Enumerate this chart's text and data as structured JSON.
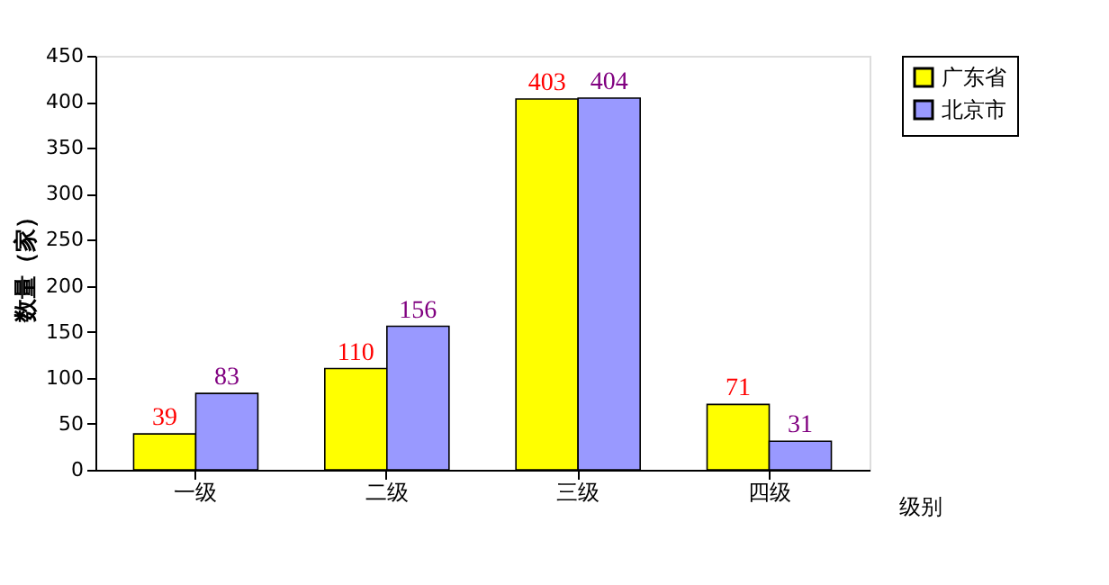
{
  "chart_data": {
    "type": "bar",
    "categories": [
      "一级",
      "二级",
      "三级",
      "四级"
    ],
    "series": [
      {
        "name": "广东省",
        "color": "#ffff00",
        "values": [
          39,
          110,
          403,
          71
        ]
      },
      {
        "name": "北京市",
        "color": "#9999ff",
        "values": [
          83,
          156,
          404,
          31
        ]
      }
    ],
    "xlabel": "级别",
    "ylabel": "数量（家）",
    "ylim": [
      0,
      450
    ],
    "yticks": [
      0,
      50,
      100,
      150,
      200,
      250,
      300,
      350,
      400,
      450
    ],
    "data_labels": true,
    "grid": false,
    "legend": "right"
  }
}
